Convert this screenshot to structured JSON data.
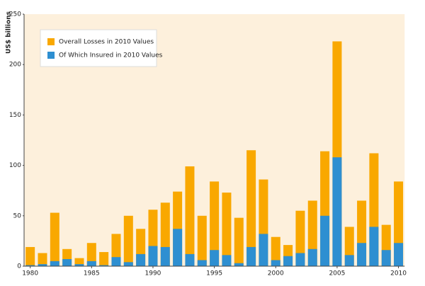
{
  "chart_data": {
    "type": "bar",
    "y_label": "US$ billions",
    "categories": [
      "1980",
      null,
      null,
      null,
      null,
      "1985",
      null,
      null,
      null,
      null,
      "1990",
      null,
      null,
      null,
      null,
      "1995",
      null,
      null,
      null,
      null,
      "2000",
      null,
      null,
      null,
      null,
      "2005",
      null,
      null,
      null,
      null,
      "2010"
    ],
    "series": [
      {
        "name": "Overall Losses in 2010 Values",
        "color": "#f9a800",
        "values": [
          19,
          13,
          53,
          17,
          8,
          23,
          14,
          32,
          50,
          37,
          56,
          63,
          74,
          99,
          50,
          84,
          73,
          48,
          115,
          86,
          29,
          21,
          55,
          65,
          114,
          223,
          39,
          65,
          112,
          41,
          84
        ]
      },
      {
        "name": "Of Which Insured in 2010 Values",
        "color": "#2e8fd1",
        "values": [
          1,
          2,
          5,
          7,
          2,
          5,
          1,
          9,
          4,
          12,
          20,
          19,
          37,
          12,
          6,
          16,
          11,
          3,
          19,
          32,
          6,
          10,
          13,
          17,
          50,
          108,
          11,
          23,
          39,
          16,
          23
        ]
      }
    ],
    "ylim": [
      0,
      250
    ],
    "yticks": [
      0,
      50,
      100,
      150,
      200,
      250
    ],
    "legend": "upper left",
    "background": "#fdf0dc"
  }
}
